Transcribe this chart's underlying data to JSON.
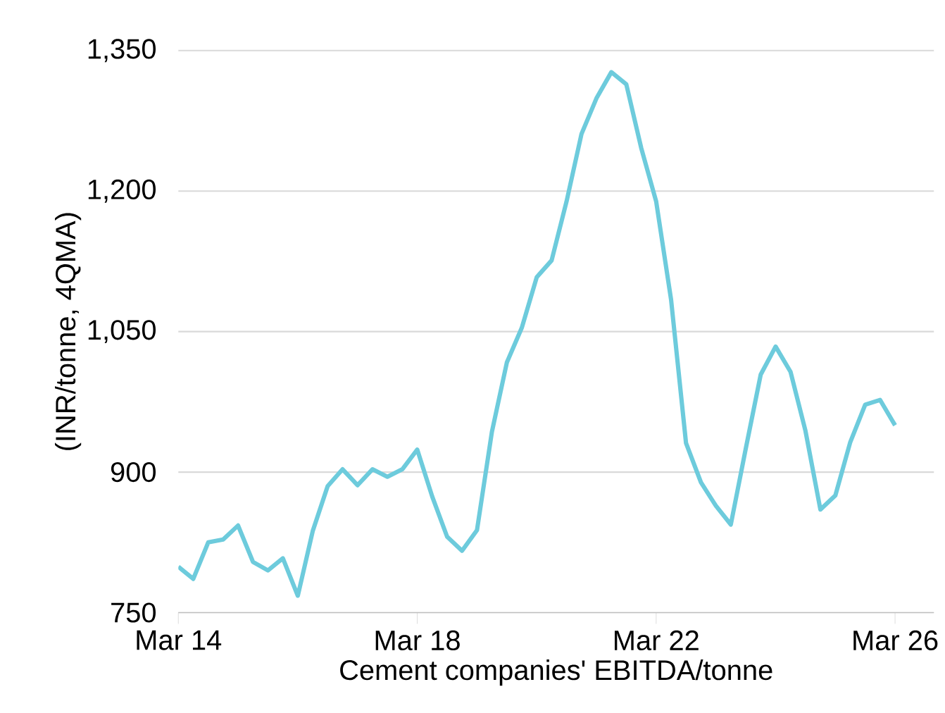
{
  "chart_data": {
    "type": "line",
    "xlabel": "Cement companies' EBITDA/tonne",
    "ylabel": "(INR/tonne, 4QMA)",
    "categories": [
      "Mar 14",
      null,
      null,
      null,
      null,
      null,
      null,
      null,
      null,
      null,
      null,
      null,
      null,
      null,
      null,
      null,
      "Mar 18",
      null,
      null,
      null,
      null,
      null,
      null,
      null,
      null,
      null,
      null,
      null,
      null,
      null,
      null,
      null,
      "Mar 22",
      null,
      null,
      null,
      null,
      null,
      null,
      null,
      null,
      null,
      null,
      null,
      null,
      null,
      null,
      null,
      "Mar 26"
    ],
    "series": [
      {
        "color": "#6dcbdc",
        "values": [
          799,
          786,
          825,
          828,
          843,
          804,
          795,
          808,
          768,
          837,
          885,
          903,
          886,
          903,
          895,
          903,
          924,
          874,
          831,
          816,
          838,
          943,
          1017,
          1054,
          1108,
          1126,
          1189,
          1261,
          1299,
          1327,
          1314,
          1246,
          1189,
          1084,
          931,
          889,
          864,
          844,
          925,
          1004,
          1034,
          1007,
          944,
          860,
          875,
          932,
          972,
          977,
          950
        ]
      }
    ],
    "ylim": [
      750,
      1350
    ],
    "yticks": [
      {
        "value": 750,
        "label": "750"
      },
      {
        "value": 900,
        "label": "900"
      },
      {
        "value": 1050,
        "label": "1,050"
      },
      {
        "value": 1200,
        "label": "1,200"
      },
      {
        "value": 1350,
        "label": "1,350"
      }
    ],
    "grid": "y",
    "marker": "none",
    "line_style": "solid"
  }
}
